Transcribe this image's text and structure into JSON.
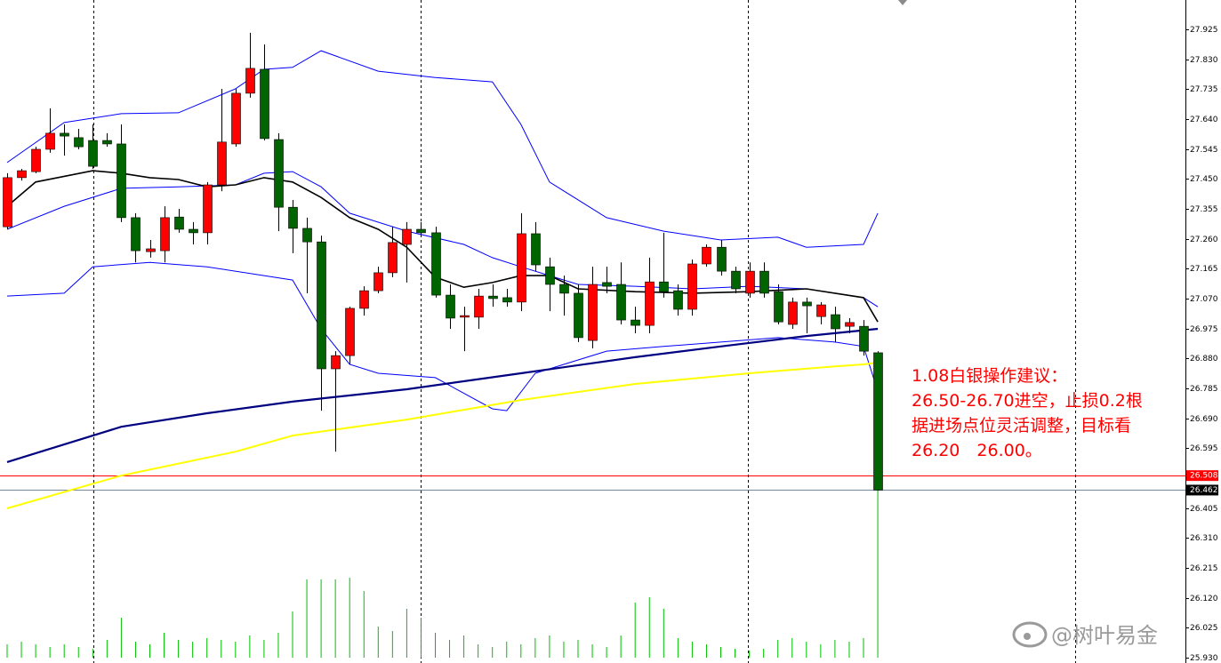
{
  "chart_data": {
    "type": "candlestick",
    "up_color": "#ff0000",
    "down_color": "#006400",
    "wick_color": "#000000",
    "volume_color": "#00c000",
    "ylim": [
      25.913,
      28.018
    ],
    "yticks": [
      27.925,
      {
        "value": 27.83,
        "label": "27.830"
      },
      27.735,
      {
        "value": 27.64,
        "label": "27.640"
      },
      27.545,
      {
        "value": 27.45,
        "label": "27.450"
      },
      27.355,
      {
        "value": 27.26,
        "label": "27.260"
      },
      27.165,
      {
        "value": 27.07,
        "label": "27.070"
      },
      26.975,
      {
        "value": 26.88,
        "label": "26.880"
      },
      26.785,
      {
        "value": 26.69,
        "label": "26.690"
      },
      26.595,
      26.405,
      {
        "value": 26.31,
        "label": "26.310"
      },
      26.215,
      {
        "value": 26.12,
        "label": "26.120"
      },
      26.025,
      {
        "value": 25.93,
        "label": "25.930"
      }
    ],
    "candles": {
      "open": [
        27.298,
        27.454,
        27.473,
        27.544,
        27.595,
        27.581,
        27.572,
        27.572,
        27.561,
        27.327,
        27.219,
        27.222,
        27.329,
        27.29,
        27.279,
        27.431,
        27.561,
        27.722,
        27.798,
        27.575,
        27.36,
        27.293,
        27.25,
        26.847,
        26.889,
        27.039,
        27.095,
        27.152,
        27.242,
        27.29,
        27.279,
        27.081,
        27.011,
        27.011,
        27.078,
        27.073,
        27.059,
        27.276,
        27.171,
        27.115,
        27.087,
        26.937,
        27.121,
        27.115,
        27.002,
        26.985,
        27.123,
        27.095,
        27.036,
        27.18,
        27.233,
        27.157,
        27.087,
        27.157,
        27.092,
        26.988,
        27.059,
        27.013,
        27.019,
        26.982,
        26.982,
        26.898
      ],
      "high": [
        27.468,
        27.482,
        27.552,
        27.674,
        27.623,
        27.609,
        27.623,
        27.595,
        27.623,
        27.341,
        27.256,
        27.363,
        27.355,
        27.313,
        27.44,
        27.736,
        27.736,
        27.914,
        27.877,
        27.595,
        27.383,
        27.327,
        27.27,
        26.903,
        27.044,
        27.109,
        27.171,
        27.298,
        27.313,
        27.313,
        27.298,
        27.115,
        27.044,
        27.101,
        27.115,
        27.101,
        27.341,
        27.313,
        27.2,
        27.143,
        27.115,
        27.171,
        27.171,
        27.185,
        27.044,
        27.2,
        27.279,
        27.115,
        27.194,
        27.242,
        27.256,
        27.171,
        27.185,
        27.185,
        27.115,
        27.073,
        27.073,
        27.059,
        27.044,
        27.008,
        27.002,
        26.903
      ],
      "low": [
        27.29,
        27.445,
        27.468,
        27.533,
        27.524,
        27.544,
        27.482,
        27.552,
        27.313,
        27.185,
        27.2,
        27.185,
        27.279,
        27.242,
        27.242,
        27.411,
        27.552,
        27.708,
        27.572,
        27.284,
        27.214,
        27.087,
        26.714,
        26.584,
        26.861,
        27.016,
        27.087,
        27.138,
        27.121,
        27.27,
        27.073,
        26.974,
        26.903,
        26.974,
        27.044,
        27.044,
        27.03,
        27.157,
        27.03,
        27.016,
        26.932,
        26.912,
        27.087,
        26.988,
        26.96,
        26.96,
        27.073,
        27.016,
        27.016,
        27.171,
        27.143,
        27.087,
        27.073,
        27.073,
        26.988,
        26.974,
        26.96,
        26.988,
        26.932,
        26.96,
        26.889,
        26.46
      ],
      "close": [
        27.454,
        27.476,
        27.544,
        27.595,
        27.586,
        27.552,
        27.49,
        27.561,
        27.327,
        27.222,
        27.228,
        27.327,
        27.29,
        27.279,
        27.431,
        27.567,
        27.722,
        27.801,
        27.578,
        27.36,
        27.293,
        27.25,
        26.847,
        26.889,
        27.039,
        27.095,
        27.152,
        27.248,
        27.29,
        27.279,
        27.081,
        27.008,
        27.016,
        27.078,
        27.07,
        27.059,
        27.276,
        27.177,
        27.115,
        27.087,
        26.946,
        27.115,
        27.109,
        27.002,
        26.985,
        27.123,
        27.092,
        27.036,
        27.18,
        27.233,
        27.157,
        27.101,
        27.157,
        27.087,
        26.996,
        27.059,
        27.047,
        27.05,
        26.974,
        26.994,
        26.903,
        26.462
      ]
    },
    "volume": [
      15,
      18,
      15,
      12,
      15,
      12,
      10,
      20,
      45,
      18,
      15,
      28,
      20,
      18,
      22,
      20,
      18,
      25,
      20,
      28,
      52,
      88,
      88,
      88,
      90,
      75,
      35,
      30,
      55,
      45,
      28,
      20,
      25,
      15,
      12,
      18,
      15,
      22,
      25,
      18,
      20,
      15,
      12,
      25,
      62,
      68,
      55,
      22,
      18,
      15,
      12,
      10,
      8,
      10,
      20,
      22,
      18,
      15,
      20,
      18,
      22,
      190
    ],
    "lines": [
      {
        "color": "#0000ff",
        "x": [
          0,
          4,
          8,
          12,
          16,
          18,
          20,
          22,
          26,
          30,
          34,
          36,
          38,
          42,
          46,
          50,
          54,
          56,
          60,
          61
        ],
        "values": [
          27.502,
          27.629,
          27.657,
          27.66,
          27.736,
          27.798,
          27.804,
          27.857,
          27.792,
          27.772,
          27.758,
          27.623,
          27.44,
          27.327,
          27.284,
          27.256,
          27.265,
          27.233,
          27.242,
          27.341
        ]
      },
      {
        "color": "#0000ff",
        "x": [
          0,
          4,
          8,
          12,
          16,
          18,
          20,
          22,
          24,
          28,
          32,
          34,
          36,
          38,
          40,
          44,
          48,
          52,
          56,
          60,
          61
        ],
        "values": [
          27.29,
          27.363,
          27.42,
          27.425,
          27.431,
          27.468,
          27.473,
          27.425,
          27.341,
          27.284,
          27.242,
          27.2,
          27.171,
          27.143,
          27.115,
          27.109,
          27.101,
          27.109,
          27.101,
          27.073,
          27.044
        ]
      },
      {
        "color": "#0000ff",
        "x": [
          0,
          4,
          6,
          10,
          14,
          18,
          20,
          22,
          24,
          26,
          30,
          34,
          35,
          37,
          39,
          42,
          46,
          50,
          54,
          58,
          60,
          61
        ],
        "values": [
          27.078,
          27.087,
          27.171,
          27.185,
          27.171,
          27.143,
          27.129,
          26.974,
          26.861,
          26.833,
          26.819,
          26.72,
          26.714,
          26.833,
          26.861,
          26.903,
          26.918,
          26.932,
          26.946,
          26.932,
          26.918,
          26.776
        ]
      },
      {
        "color": "#000000",
        "width": 1.6,
        "x": [
          0,
          2,
          6,
          8,
          10,
          12,
          14,
          16,
          18,
          20,
          22,
          24,
          26,
          28,
          30,
          32,
          34,
          36,
          38,
          40,
          44,
          48,
          52,
          56,
          60,
          61
        ],
        "values": [
          27.363,
          27.44,
          27.476,
          27.468,
          27.454,
          27.448,
          27.425,
          27.431,
          27.454,
          27.44,
          27.391,
          27.327,
          27.29,
          27.233,
          27.138,
          27.106,
          27.121,
          27.143,
          27.143,
          27.101,
          27.092,
          27.087,
          27.092,
          27.101,
          27.073,
          26.996
        ]
      },
      {
        "color": "#000080",
        "width": 2.2,
        "x": [
          0,
          8,
          14,
          20,
          28,
          36,
          44,
          50,
          56,
          61
        ],
        "values": [
          26.551,
          26.663,
          26.706,
          26.743,
          26.782,
          26.833,
          26.884,
          26.918,
          26.951,
          26.974
        ]
      },
      {
        "color": "#ffff00",
        "width": 2,
        "x": [
          0,
          8,
          16,
          20,
          28,
          36,
          44,
          52,
          58,
          60,
          61
        ],
        "values": [
          26.404,
          26.508,
          26.584,
          26.635,
          26.686,
          26.748,
          26.799,
          26.833,
          26.855,
          26.861,
          26.867
        ]
      }
    ],
    "price_lines": [
      {
        "value": 26.508,
        "color": "#ff0000",
        "label_bg": "#ff0000"
      },
      {
        "value": 26.462,
        "color": "#778899",
        "label_bg": "#000000"
      }
    ],
    "annotation": [
      "1.08白银操作建议：",
      "26.50-26.70进空，止损0.2根",
      "据进场点位灵活调整，目标看",
      "26.20　26.00。"
    ],
    "watermark": "@树叶易金"
  }
}
